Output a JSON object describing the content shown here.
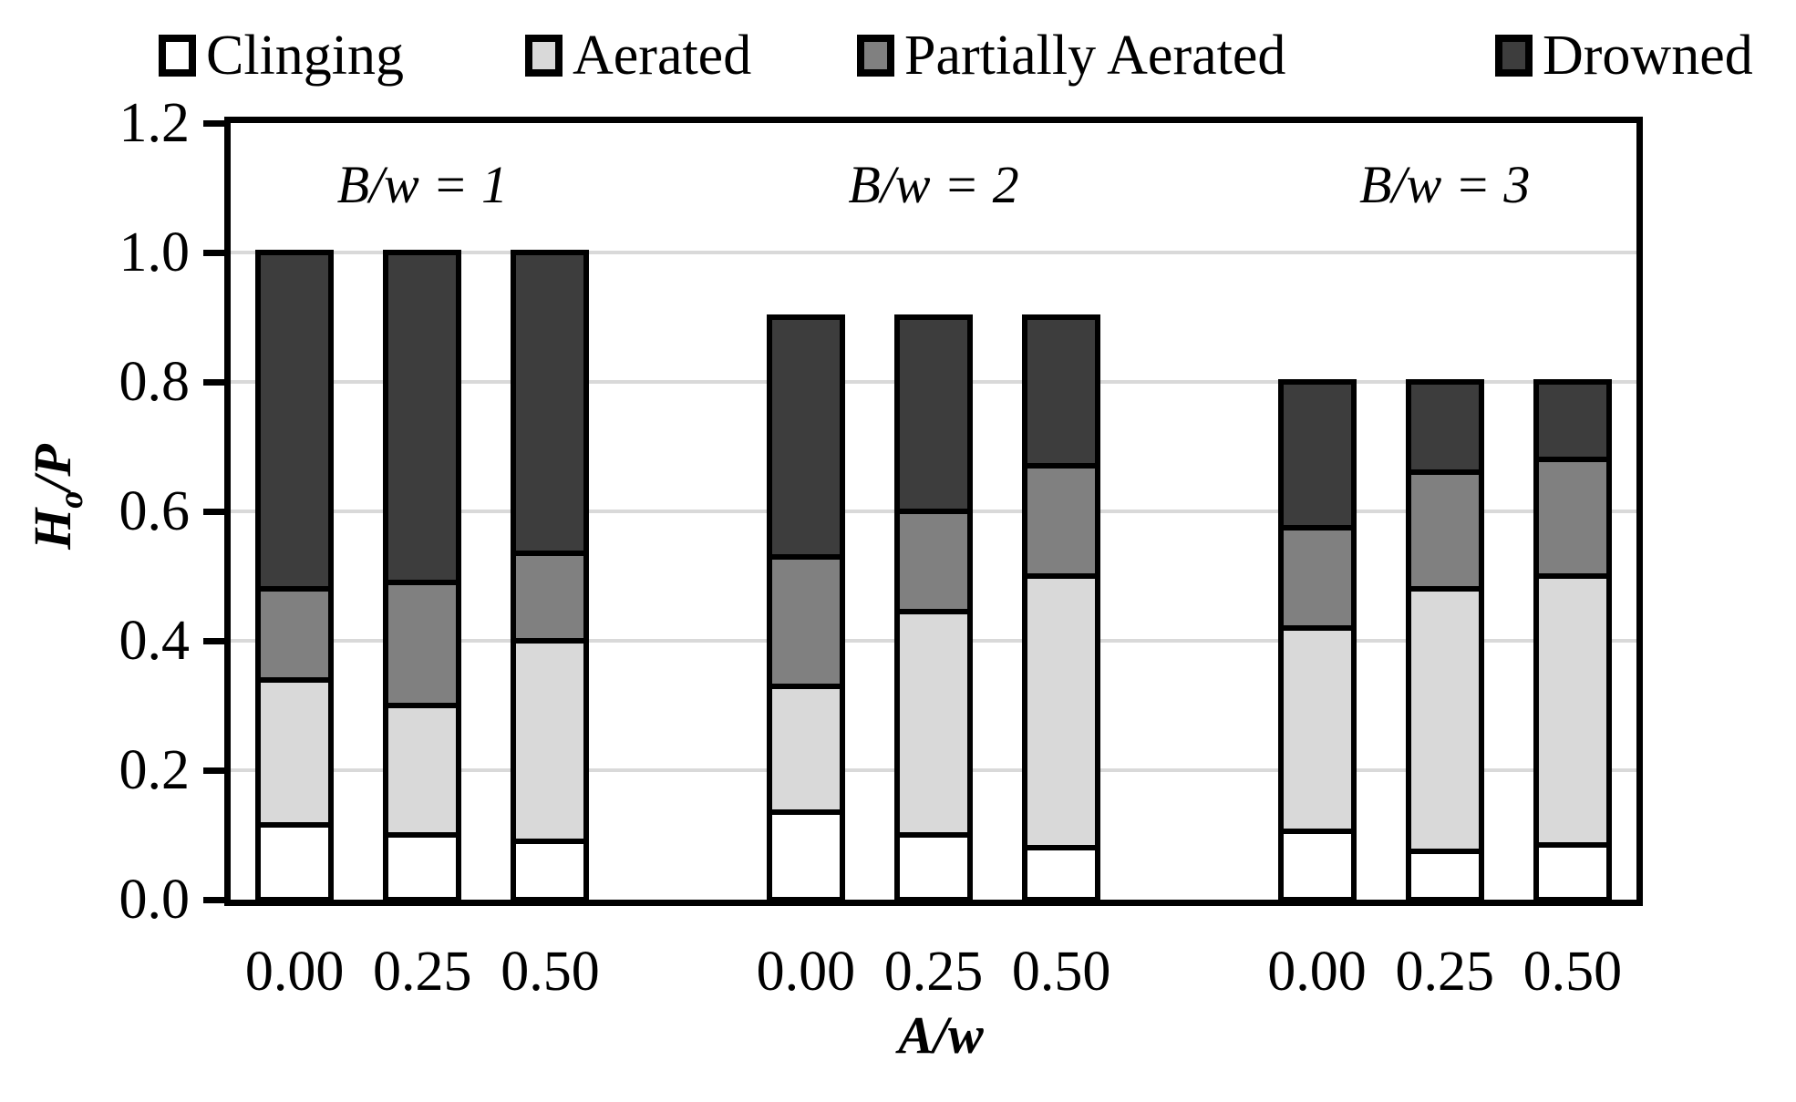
{
  "legend": {
    "items": [
      {
        "label": "Clinging",
        "color_key": "clinging"
      },
      {
        "label": "Aerated",
        "color_key": "aerated"
      },
      {
        "label": "Partially Aerated",
        "color_key": "partially_aerated"
      },
      {
        "label": "Drowned",
        "color_key": "drowned"
      }
    ]
  },
  "colors": {
    "clinging": "#ffffff",
    "aerated": "#d9d9d9",
    "partially_aerated": "#808080",
    "drowned": "#3d3d3d",
    "gridline": "#d9d9d9",
    "axis": "#000000"
  },
  "y_axis": {
    "title_h": "H",
    "title_sub": "o",
    "title_rest": "/P",
    "tick_labels": [
      "0.0",
      "0.2",
      "0.4",
      "0.6",
      "0.8",
      "1.0",
      "1.2"
    ],
    "tick_values": [
      0,
      0.2,
      0.4,
      0.6,
      0.8,
      1.0,
      1.2
    ]
  },
  "x_axis": {
    "title": "A/w",
    "tick_labels": [
      "0.00",
      "0.25",
      "0.50"
    ]
  },
  "chart_data": {
    "type": "bar",
    "stacked": true,
    "title": "",
    "xlabel": "A/w",
    "ylabel": "Ho/P",
    "ylim": [
      0,
      1.2
    ],
    "grid": true,
    "legend_position": "top",
    "series_order": [
      "Clinging",
      "Aerated",
      "Partially Aerated",
      "Drowned"
    ],
    "series_color_keys": [
      "clinging",
      "aerated",
      "partially_aerated",
      "drowned"
    ],
    "groups": [
      {
        "label": "B/w = 1",
        "bars": [
          {
            "x": "0.00",
            "cumulative": [
              0.115,
              0.34,
              0.48,
              1.0
            ]
          },
          {
            "x": "0.25",
            "cumulative": [
              0.1,
              0.3,
              0.49,
              1.0
            ]
          },
          {
            "x": "0.50",
            "cumulative": [
              0.09,
              0.4,
              0.535,
              1.0
            ]
          }
        ]
      },
      {
        "label": "B/w = 2",
        "bars": [
          {
            "x": "0.00",
            "cumulative": [
              0.135,
              0.33,
              0.53,
              0.9
            ]
          },
          {
            "x": "0.25",
            "cumulative": [
              0.1,
              0.445,
              0.6,
              0.9
            ]
          },
          {
            "x": "0.50",
            "cumulative": [
              0.08,
              0.5,
              0.67,
              0.9
            ]
          }
        ]
      },
      {
        "label": "B/w = 3",
        "bars": [
          {
            "x": "0.00",
            "cumulative": [
              0.105,
              0.42,
              0.575,
              0.8
            ]
          },
          {
            "x": "0.25",
            "cumulative": [
              0.075,
              0.48,
              0.66,
              0.8
            ]
          },
          {
            "x": "0.50",
            "cumulative": [
              0.085,
              0.5,
              0.68,
              0.8
            ]
          }
        ]
      }
    ]
  }
}
